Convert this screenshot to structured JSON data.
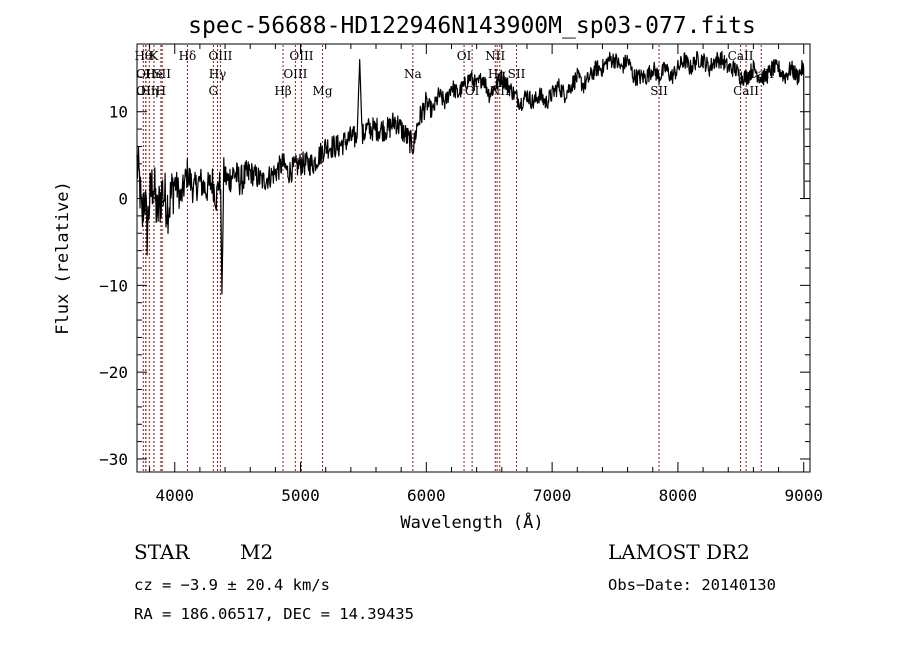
{
  "chart_data": {
    "type": "line",
    "title": "spec-56688-HD122946N143900M_sp03-077.fits",
    "xlabel": "Wavelength (Å)",
    "ylabel": "Flux (relative)",
    "xlim": [
      3700,
      9050
    ],
    "ylim": [
      -31.5,
      17.8
    ],
    "xticks": [
      4000,
      5000,
      6000,
      7000,
      8000,
      9000
    ],
    "yticks": [
      -30,
      -20,
      -10,
      0,
      10
    ],
    "grid": false,
    "series_color": "#000000",
    "line_color": "#8b1a1a",
    "series": [
      {
        "x": [
          3700,
          3720,
          3740,
          3760,
          3780,
          3800,
          3830,
          3860,
          3900,
          3950,
          4000,
          4050,
          4100,
          4150,
          4200,
          4250,
          4300,
          4330,
          4350,
          4365,
          4375,
          4390,
          4420,
          4470,
          4520,
          4600,
          4700,
          4800,
          4860,
          4900,
          5000,
          5100,
          5200,
          5300,
          5400,
          5450,
          5470,
          5490,
          5520,
          5600,
          5700,
          5750,
          5800,
          5850,
          5900,
          5920,
          5940,
          6000,
          6050,
          6100,
          6150,
          6200,
          6250,
          6300,
          6350,
          6400,
          6450,
          6500,
          6550,
          6600,
          6650,
          6700,
          6750,
          6800,
          6850,
          6900,
          6950,
          7000,
          7050,
          7100,
          7150,
          7200,
          7250,
          7300,
          7350,
          7400,
          7450,
          7500,
          7550,
          7600,
          7650,
          7700,
          7750,
          7800,
          7850,
          7900,
          7950,
          8000,
          8050,
          8100,
          8150,
          8200,
          8250,
          8300,
          8350,
          8400,
          8450,
          8500,
          8550,
          8600,
          8650,
          8700,
          8750,
          8800,
          8850,
          8900,
          8950,
          8990,
          9000,
          9003
        ],
        "y": [
          4,
          2,
          -3,
          1,
          -4,
          0,
          2,
          -2,
          1,
          -1,
          2,
          0,
          3,
          1,
          2,
          1,
          2,
          0,
          2,
          1,
          -11,
          3,
          2,
          3,
          2,
          3,
          2,
          3,
          4,
          3,
          4,
          4,
          6,
          6,
          7,
          7,
          16,
          7,
          8,
          8,
          8,
          9,
          8,
          7,
          6,
          8,
          9,
          11,
          10,
          12,
          11,
          13,
          12,
          13,
          14,
          13,
          14,
          12,
          13,
          14,
          13,
          12,
          11,
          12,
          11,
          12,
          11,
          12,
          13,
          12,
          13,
          14,
          13,
          14,
          15,
          15,
          16,
          16,
          15,
          16,
          14,
          14,
          14,
          15,
          14,
          15,
          14,
          15,
          16,
          15,
          16,
          16,
          15,
          16,
          16,
          15,
          15,
          14,
          14,
          15,
          14,
          14,
          15,
          15,
          14,
          15,
          14,
          15,
          15,
          0
        ]
      }
    ],
    "lines": [
      {
        "x": 3750,
        "label": "Hθ",
        "row": 1
      },
      {
        "x": 3770,
        "label": "OII",
        "row": 2
      },
      {
        "x": 3770,
        "label": "OII",
        "row": 3
      },
      {
        "x": 3798,
        "label": "Hη",
        "row": 3
      },
      {
        "x": 3835,
        "label": "K",
        "row": 1
      },
      {
        "x": 3835,
        "label": "He",
        "row": 2
      },
      {
        "x": 3890,
        "label": "H",
        "row": 3
      },
      {
        "x": 3900,
        "label": "SII",
        "row": 2
      },
      {
        "x": 4101,
        "label": "Hδ",
        "row": 1
      },
      {
        "x": 4307,
        "label": "G",
        "row": 3
      },
      {
        "x": 4340,
        "label": "Hγ",
        "row": 2
      },
      {
        "x": 4363,
        "label": "OIII",
        "row": 1
      },
      {
        "x": 4861,
        "label": "Hβ",
        "row": 3
      },
      {
        "x": 4959,
        "label": "OIII",
        "row": 2
      },
      {
        "x": 5007,
        "label": "OIII",
        "row": 1
      },
      {
        "x": 5175,
        "label": "Mg",
        "row": 3
      },
      {
        "x": 5893,
        "label": "Na",
        "row": 2
      },
      {
        "x": 6300,
        "label": "OI",
        "row": 1
      },
      {
        "x": 6364,
        "label": "OI",
        "row": 3
      },
      {
        "x": 6548,
        "label": "NII",
        "row": 1
      },
      {
        "x": 6563,
        "label": "Hα",
        "row": 2
      },
      {
        "x": 6584,
        "label": "NII",
        "row": 3
      },
      {
        "x": 6717,
        "label": "SII",
        "row": 2
      },
      {
        "x": 7850,
        "label": "SII",
        "row": 3
      },
      {
        "x": 8498,
        "label": "CaII",
        "row": 1
      },
      {
        "x": 8542,
        "label": "CaII",
        "row": 3
      },
      {
        "x": 8662,
        "label": "CaII",
        "row": 2
      }
    ]
  },
  "info": {
    "class": "STAR",
    "subclass": "M2",
    "survey": "LAMOST DR2",
    "cz": "cz = −3.9 ± 20.4 km/s",
    "obs_date": "Obs−Date: 20140130",
    "radec": "RA = 186.06517, DEC =  14.39435"
  }
}
